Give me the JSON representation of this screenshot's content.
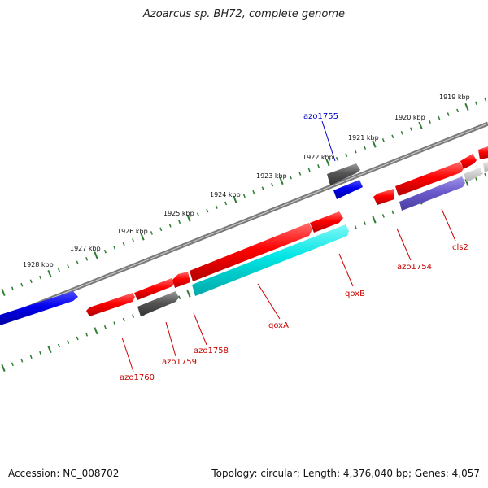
{
  "title": "Azoarcus sp. BH72, complete genome",
  "accession": "Accession: NC_008702",
  "summary": "Topology: circular; Length: 4,376,040 bp; Genes: 4,057",
  "ticks": [
    {
      "label": "1919 kbp"
    },
    {
      "label": "1920 kbp"
    },
    {
      "label": "1921 kbp"
    },
    {
      "label": "1922 kbp"
    },
    {
      "label": "1923 kbp"
    },
    {
      "label": "1924 kbp"
    },
    {
      "label": "1925 kbp"
    },
    {
      "label": "1926 kbp"
    },
    {
      "label": "1927 kbp"
    },
    {
      "label": "1928 kbp"
    }
  ],
  "genes": [
    {
      "label": "azo1755",
      "color": "#0000cc"
    },
    {
      "label": "azo1754",
      "color": "#cc0000"
    },
    {
      "label": "cls2",
      "color": "#cc0000"
    },
    {
      "label": "qoxB",
      "color": "#cc0000"
    },
    {
      "label": "qoxA",
      "color": "#cc0000"
    },
    {
      "label": "azo1758",
      "color": "#cc0000"
    },
    {
      "label": "azo1759",
      "color": "#cc0000"
    },
    {
      "label": "azo1760",
      "color": "#cc0000"
    }
  ],
  "colors": {
    "forward": "#ff0000",
    "reverse_blue": "#0000ee",
    "cyan": "#00e5e5",
    "gray": "#555555",
    "purple": "#6a5acd",
    "backbone": "#777777",
    "ticks": "#2e7d32"
  }
}
